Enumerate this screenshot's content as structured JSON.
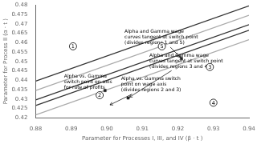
{
  "chart_data": {
    "type": "line",
    "xlabel": "Parameter for Processes I, III, and IV (β · t )",
    "ylabel": "Parameter for Process II (α · t )",
    "xlim": [
      0.88,
      0.94
    ],
    "ylim": [
      0.42,
      0.48
    ],
    "xticks": [
      0.88,
      0.89,
      {
        "value": 0.9,
        "label": "0.90"
      },
      0.91,
      0.92,
      0.93,
      0.94
    ],
    "yticks": [
      0.42,
      0.425,
      0.43,
      0.435,
      0.44,
      0.445,
      0.45,
      0.455,
      0.46,
      0.465,
      0.47,
      0.475,
      0.48
    ],
    "grid": false,
    "series": [
      {
        "type": "line",
        "color": "#aaaaaa",
        "x": [
          0.88,
          0.94
        ],
        "values": [
          0.4215,
          0.4615
        ]
      },
      {
        "type": "line",
        "color": "#333333",
        "x": [
          0.88,
          0.94
        ],
        "values": [
          0.4265,
          0.4665
        ]
      },
      {
        "type": "line",
        "color": "#333333",
        "x": [
          0.88,
          0.94
        ],
        "values": [
          0.4295,
          0.4695
        ]
      },
      {
        "type": "line",
        "color": "#aaaaaa",
        "x": [
          0.88,
          0.94
        ],
        "values": [
          0.4345,
          0.4745
        ]
      },
      {
        "type": "line",
        "color": "#333333",
        "x": [
          0.88,
          0.94
        ],
        "values": [
          0.4395,
          0.4795
        ]
      },
      {
        "type": "scatter",
        "marker": "square",
        "color": "#222222",
        "x": [
          0.921,
          0.8995,
          0.906
        ],
        "values": [
          0.4515,
          0.4345,
          0.4305
        ]
      }
    ],
    "region_labels": [
      {
        "text": "1",
        "x": 0.8905,
        "y": 0.458
      },
      {
        "text": "5",
        "x": 0.9155,
        "y": 0.458
      },
      {
        "text": "3",
        "x": 0.929,
        "y": 0.447
      },
      {
        "text": "2",
        "x": 0.898,
        "y": 0.432
      },
      {
        "text": "4",
        "x": 0.93,
        "y": 0.428
      }
    ],
    "annotations": [
      {
        "text": "Alpha and Gamma wage\ncurves tangent at switch point\n(divides regions 1 and 5)",
        "x": 0.905,
        "y": 0.458,
        "arrow_x": 0.921,
        "arrow_y": 0.4515
      },
      {
        "text": "Alpha vs. Gamma\nswitch point on axis\nfor rate of profits",
        "x": 0.888,
        "y": 0.4435,
        "arrow_x": 0.8995,
        "arrow_y": 0.4345
      },
      {
        "text": "Alpha and Gamma wage\ncurves tangent at switch point\n(divides regions 3 and 4)",
        "x": 0.912,
        "y": 0.4455,
        "arrow_x": 0.906,
        "arrow_y": 0.4305
      },
      {
        "text": "Alpha vs. Gamma switch\npoint on wage axis\n(divides regions 2 and 3)",
        "x": 0.904,
        "y": 0.433,
        "arrow_x": 0.9005,
        "arrow_y": 0.4265
      }
    ]
  }
}
